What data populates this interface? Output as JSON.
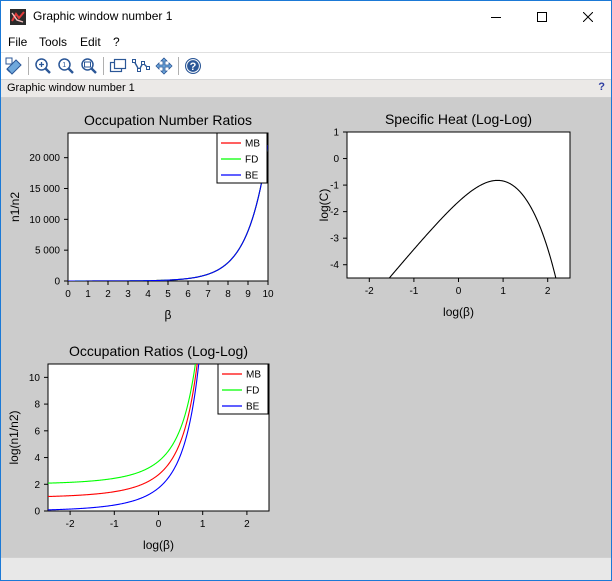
{
  "window": {
    "title": "Graphic window number 1",
    "info_label": "Graphic window number 1",
    "info_help": "?"
  },
  "menu": {
    "items": [
      "File",
      "Tools",
      "Edit",
      "?"
    ]
  },
  "toolbar": {
    "icons": [
      "select-icon",
      "zoom-in-icon",
      "zoom-original-icon",
      "zoom-out-icon",
      "rotate-icon",
      "data-tips-icon",
      "pan-icon",
      "help-icon"
    ]
  },
  "chart_data": [
    {
      "type": "line",
      "title": "Occupation Number Ratios",
      "xlabel": "β",
      "ylabel": "n1/n2",
      "xlim": [
        0,
        10
      ],
      "ylim": [
        0,
        24000
      ],
      "xticks": [
        0,
        1,
        2,
        3,
        4,
        5,
        6,
        7,
        8,
        9,
        10
      ],
      "xtick_labels": [
        "0",
        "1",
        "2",
        "3",
        "4",
        "5",
        "6",
        "7",
        "8",
        "9",
        "10"
      ],
      "yticks": [
        0,
        5000,
        10000,
        15000,
        20000
      ],
      "ytick_labels": [
        "0",
        "5 000",
        "10 000",
        "15 000",
        "20 000"
      ],
      "legend_position": "top-right",
      "series": [
        {
          "name": "MB",
          "color": "#ff0000",
          "function": "exp(beta)"
        },
        {
          "name": "FD",
          "color": "#00ff00",
          "function": "exp(beta)+1"
        },
        {
          "name": "BE",
          "color": "#0000ff",
          "function": "exp(beta)-1"
        }
      ]
    },
    {
      "type": "line",
      "title": "Specific Heat (Log-Log)",
      "xlabel": "log(β)",
      "ylabel": "log(C)",
      "xlim": [
        -2.5,
        2.5
      ],
      "ylim": [
        -4.5,
        1
      ],
      "xticks": [
        -2,
        -1,
        0,
        1,
        2
      ],
      "xtick_labels": [
        "-2",
        "-1",
        "0",
        "1",
        "2"
      ],
      "yticks": [
        -4,
        -3,
        -2,
        -1,
        0,
        1
      ],
      "ytick_labels": [
        "-4",
        "-3",
        "-2",
        "-1",
        "0",
        "1"
      ],
      "series": [
        {
          "color": "#000000",
          "function": "two-level heat capacity",
          "x_range": [
            -2.3,
            2.3
          ]
        }
      ]
    },
    {
      "type": "line",
      "title": "Occupation Ratios (Log-Log)",
      "xlabel": "log(β)",
      "ylabel": "log(n1/n2)",
      "xlim": [
        -2.5,
        2.5
      ],
      "ylim": [
        0,
        11
      ],
      "xticks": [
        -2,
        -1,
        0,
        1,
        2
      ],
      "xtick_labels": [
        "-2",
        "-1",
        "0",
        "1",
        "2"
      ],
      "yticks": [
        0,
        2,
        4,
        6,
        8,
        10
      ],
      "ytick_labels": [
        "0",
        "2",
        "4",
        "6",
        "8",
        "10"
      ],
      "legend_position": "top-right",
      "series": [
        {
          "name": "MB",
          "color": "#ff0000",
          "function": "exp(beta)"
        },
        {
          "name": "FD",
          "color": "#00ff00",
          "function": "exp(beta)+1"
        },
        {
          "name": "BE",
          "color": "#0000ff",
          "function": "exp(beta)-1"
        }
      ]
    }
  ]
}
